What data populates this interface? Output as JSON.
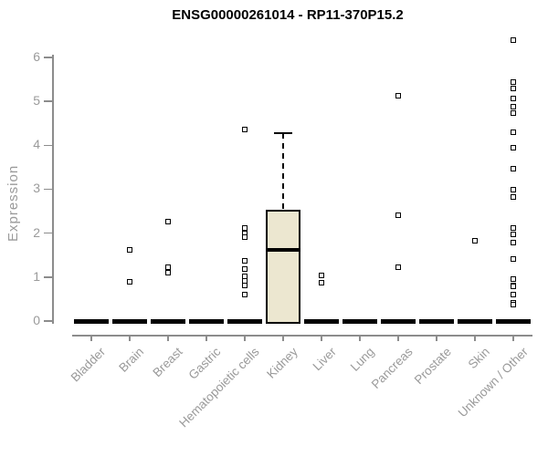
{
  "chart_data": {
    "type": "boxplot",
    "title": "ENSG00000261014 - RP11-370P15.2",
    "ylabel": "Expression",
    "yticks": [
      0,
      1,
      2,
      3,
      4,
      5,
      6
    ],
    "ylim": [
      0,
      6.5
    ],
    "grid": false,
    "legend": "none",
    "colors": {
      "axis": "#8c8c8c",
      "label": "#9a9a9a",
      "title": "#000000",
      "marker": "#000000",
      "box_fill": "#ece7d0",
      "box_stroke": "#000000"
    },
    "categories": [
      "Bladder",
      "Brain",
      "Breast",
      "Gastric",
      "Hematopoietic cells",
      "Kidney",
      "Liver",
      "Lung",
      "Pancreas",
      "Prostate",
      "Skin",
      "Unknown / Other"
    ],
    "series": [
      {
        "label": "Bladder",
        "zero_bar": true,
        "points": []
      },
      {
        "label": "Brain",
        "zero_bar": true,
        "points": [
          1.62,
          0.9
        ]
      },
      {
        "label": "Breast",
        "zero_bar": true,
        "points": [
          2.26,
          1.22,
          1.1
        ]
      },
      {
        "label": "Gastric",
        "zero_bar": true,
        "points": []
      },
      {
        "label": "Hematopoietic cells",
        "zero_bar": true,
        "points": [
          4.35,
          2.12,
          2.0,
          1.92,
          1.38,
          1.18,
          1.02,
          0.92,
          0.8,
          0.6
        ]
      },
      {
        "label": "Kidney",
        "zero_bar": false,
        "points": [],
        "box": {
          "q1": 0,
          "median": 1.62,
          "q3": 2.53,
          "whisker_high": 4.28
        }
      },
      {
        "label": "Liver",
        "zero_bar": true,
        "points": [
          1.04,
          0.87
        ]
      },
      {
        "label": "Lung",
        "zero_bar": true,
        "points": []
      },
      {
        "label": "Pancreas",
        "zero_bar": true,
        "points": [
          5.12,
          2.4,
          1.22
        ]
      },
      {
        "label": "Prostate",
        "zero_bar": true,
        "points": []
      },
      {
        "label": "Skin",
        "zero_bar": true,
        "points": [
          1.83
        ]
      },
      {
        "label": "Unknown / Other",
        "zero_bar": true,
        "points": [
          6.4,
          5.44,
          5.29,
          5.06,
          4.87,
          4.73,
          4.3,
          3.94,
          3.47,
          2.99,
          2.82,
          2.12,
          1.97,
          1.79,
          1.41,
          0.95,
          0.81,
          0.78,
          0.6,
          0.42,
          0.38
        ]
      }
    ]
  }
}
